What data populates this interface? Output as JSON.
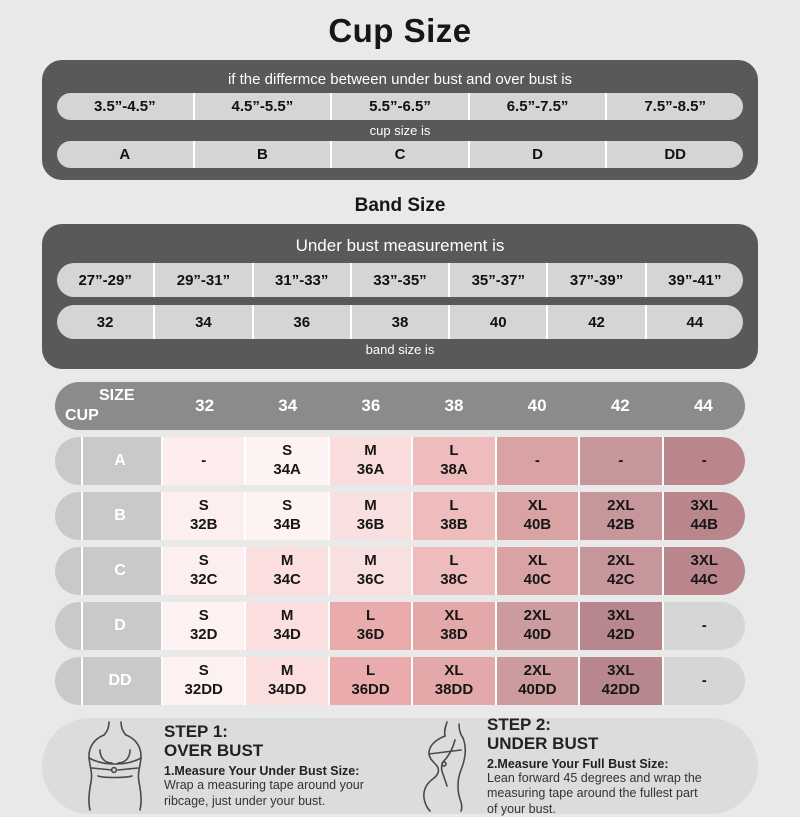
{
  "colors": {
    "page_bg": "#e9e9e9",
    "panel_dark": "#595959",
    "cell_gray": "#d5d5d5",
    "matrix_header_gray": "#8b8b8b",
    "row_label_gray": "#c9c9c9",
    "pill_bg": "#dcdcdc"
  },
  "title": "Cup Size",
  "cup_table": {
    "header": "if the differmce between under bust and over bust is",
    "ranges": [
      "3.5”-4.5”",
      "4.5”-5.5”",
      "5.5”-6.5”",
      "6.5”-7.5”",
      "7.5”-8.5”"
    ],
    "mid_label": "cup size is",
    "cups": [
      "A",
      "B",
      "C",
      "D",
      "DD"
    ]
  },
  "band_section": {
    "title": "Band Size",
    "header": "Under bust measurement is",
    "ranges": [
      "27”-29”",
      "29”-31”",
      "31”-33”",
      "33”-35”",
      "35”-37”",
      "37”-39”",
      "39”-41”"
    ],
    "bands": [
      "32",
      "34",
      "36",
      "38",
      "40",
      "42",
      "44"
    ],
    "footer": "band size is"
  },
  "matrix": {
    "corner_top": "SIZE",
    "corner_bottom": "CUP",
    "columns": [
      "32",
      "34",
      "36",
      "38",
      "40",
      "42",
      "44"
    ],
    "rows": [
      {
        "cup": "A",
        "cells": [
          {
            "size": "-",
            "code": "",
            "bg": "#fcecec"
          },
          {
            "size": "S",
            "code": "34A",
            "bg": "#fdf3f3"
          },
          {
            "size": "M",
            "code": "36A",
            "bg": "#f9dddd"
          },
          {
            "size": "L",
            "code": "38A",
            "bg": "#eebcbc"
          },
          {
            "size": "-",
            "code": "",
            "bg": "#d9a3a3"
          },
          {
            "size": "-",
            "code": "",
            "bg": "#c7969b"
          },
          {
            "size": "-",
            "code": "",
            "bg": "#b9868c"
          }
        ]
      },
      {
        "cup": "B",
        "cells": [
          {
            "size": "S",
            "code": "32B",
            "bg": "#fdeff0"
          },
          {
            "size": "S",
            "code": "34B",
            "bg": "#fdf3f3"
          },
          {
            "size": "M",
            "code": "36B",
            "bg": "#f9e0e0"
          },
          {
            "size": "L",
            "code": "38B",
            "bg": "#eebcbc"
          },
          {
            "size": "XL",
            "code": "40B",
            "bg": "#d9a3a3"
          },
          {
            "size": "2XL",
            "code": "42B",
            "bg": "#c7969b"
          },
          {
            "size": "3XL",
            "code": "44B",
            "bg": "#b9868c"
          }
        ]
      },
      {
        "cup": "C",
        "cells": [
          {
            "size": "S",
            "code": "32C",
            "bg": "#fdeff0"
          },
          {
            "size": "M",
            "code": "34C",
            "bg": "#fbdede"
          },
          {
            "size": "M",
            "code": "36C",
            "bg": "#f9e0e0"
          },
          {
            "size": "L",
            "code": "38C",
            "bg": "#eebcbc"
          },
          {
            "size": "XL",
            "code": "40C",
            "bg": "#d9a3a3"
          },
          {
            "size": "2XL",
            "code": "42C",
            "bg": "#c7969b"
          },
          {
            "size": "3XL",
            "code": "44C",
            "bg": "#b9868c"
          }
        ]
      },
      {
        "cup": "D",
        "cells": [
          {
            "size": "S",
            "code": "32D",
            "bg": "#fdf1f1"
          },
          {
            "size": "M",
            "code": "34D",
            "bg": "#fbdede"
          },
          {
            "size": "L",
            "code": "36D",
            "bg": "#e9abab"
          },
          {
            "size": "XL",
            "code": "38D",
            "bg": "#e3a8a8"
          },
          {
            "size": "2XL",
            "code": "40D",
            "bg": "#cc9b9e"
          },
          {
            "size": "3XL",
            "code": "42D",
            "bg": "#b8878d"
          },
          {
            "size": "-",
            "code": "",
            "bg": "#d6d6d6"
          }
        ]
      },
      {
        "cup": "DD",
        "cells": [
          {
            "size": "S",
            "code": "32DD",
            "bg": "#fdf1f1"
          },
          {
            "size": "M",
            "code": "34DD",
            "bg": "#fbdede"
          },
          {
            "size": "L",
            "code": "36DD",
            "bg": "#e9abab"
          },
          {
            "size": "XL",
            "code": "38DD",
            "bg": "#e3a8a8"
          },
          {
            "size": "2XL",
            "code": "40DD",
            "bg": "#cc9b9e"
          },
          {
            "size": "3XL",
            "code": "42DD",
            "bg": "#b8878d"
          },
          {
            "size": "-",
            "code": "",
            "bg": "#d6d6d6"
          }
        ]
      }
    ]
  },
  "steps": [
    {
      "title1": "STEP 1:",
      "title2": "OVER BUST",
      "lead": "1.Measure Your Under Bust Size:",
      "body": "Wrap a measuring tape around your ribcage, just under your bust."
    },
    {
      "title1": "STEP 2:",
      "title2": "UNDER BUST",
      "lead": "2.Measure Your Full Bust Size:",
      "body": "Lean forward 45 degrees and wrap the measuring tape around the fullest part of your bust."
    }
  ],
  "chart_data": [
    {
      "type": "table",
      "title": "Cup Size",
      "note": "if the differmce between under bust and over bust is -> cup size is",
      "columns": [
        "3.5”-4.5”",
        "4.5”-5.5”",
        "5.5”-6.5”",
        "6.5”-7.5”",
        "7.5”-8.5”"
      ],
      "rows": [
        [
          "A",
          "B",
          "C",
          "D",
          "DD"
        ]
      ]
    },
    {
      "type": "table",
      "title": "Band Size",
      "note": "Under bust measurement is -> band size is",
      "columns": [
        "27”-29”",
        "29”-31”",
        "31”-33”",
        "33”-35”",
        "35”-37”",
        "37”-39”",
        "39”-41”"
      ],
      "rows": [
        [
          "32",
          "34",
          "36",
          "38",
          "40",
          "42",
          "44"
        ]
      ]
    },
    {
      "type": "table",
      "title": "SIZE / CUP matrix",
      "columns": [
        "32",
        "34",
        "36",
        "38",
        "40",
        "42",
        "44"
      ],
      "row_labels": [
        "A",
        "B",
        "C",
        "D",
        "DD"
      ],
      "rows": [
        [
          "-",
          "S 34A",
          "M 36A",
          "L 38A",
          "-",
          "-",
          "-"
        ],
        [
          "S 32B",
          "S 34B",
          "M 36B",
          "L 38B",
          "XL 40B",
          "2XL 42B",
          "3XL 44B"
        ],
        [
          "S 32C",
          "M 34C",
          "M 36C",
          "L 38C",
          "XL 40C",
          "2XL 42C",
          "3XL 44C"
        ],
        [
          "S 32D",
          "M 34D",
          "L 36D",
          "XL 38D",
          "2XL 40D",
          "3XL 42D",
          "-"
        ],
        [
          "S 32DD",
          "M 34DD",
          "L 36DD",
          "XL 38DD",
          "2XL 40DD",
          "3XL 42DD",
          "-"
        ]
      ]
    }
  ]
}
